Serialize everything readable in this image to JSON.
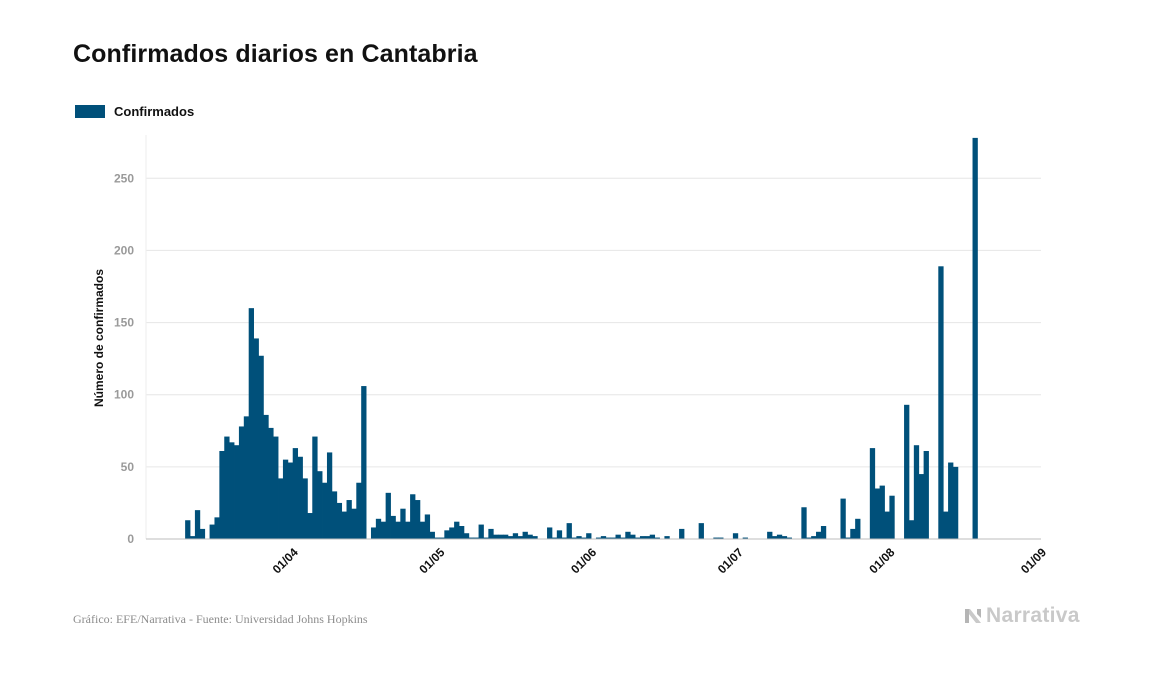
{
  "chart_data": {
    "type": "bar",
    "title": "Confirmados diarios en Cantabria",
    "ylabel": "Número de confirmados",
    "legend": "top-left",
    "grid": true,
    "ylim": [
      0,
      280
    ],
    "yticks": [
      0,
      50,
      100,
      150,
      200,
      250
    ],
    "xlim": [
      "2020-03-02",
      "2020-09-01"
    ],
    "xticks": [
      {
        "date": "2020-04-01",
        "label": "01/04"
      },
      {
        "date": "2020-05-01",
        "label": "01/05"
      },
      {
        "date": "2020-06-01",
        "label": "01/06"
      },
      {
        "date": "2020-07-01",
        "label": "01/07"
      },
      {
        "date": "2020-08-01",
        "label": "01/08"
      },
      {
        "date": "2020-09-01",
        "label": "01/09"
      }
    ],
    "series": [
      {
        "name": "Confirmados",
        "color": "#00507a",
        "points": [
          [
            "2020-03-10",
            13
          ],
          [
            "2020-03-11",
            2
          ],
          [
            "2020-03-12",
            20
          ],
          [
            "2020-03-13",
            7
          ],
          [
            "2020-03-15",
            10
          ],
          [
            "2020-03-16",
            15
          ],
          [
            "2020-03-17",
            61
          ],
          [
            "2020-03-18",
            71
          ],
          [
            "2020-03-19",
            67
          ],
          [
            "2020-03-20",
            65
          ],
          [
            "2020-03-21",
            78
          ],
          [
            "2020-03-22",
            85
          ],
          [
            "2020-03-23",
            160
          ],
          [
            "2020-03-24",
            139
          ],
          [
            "2020-03-25",
            127
          ],
          [
            "2020-03-26",
            86
          ],
          [
            "2020-03-27",
            77
          ],
          [
            "2020-03-28",
            71
          ],
          [
            "2020-03-29",
            42
          ],
          [
            "2020-03-30",
            55
          ],
          [
            "2020-03-31",
            53
          ],
          [
            "2020-04-01",
            63
          ],
          [
            "2020-04-02",
            57
          ],
          [
            "2020-04-03",
            42
          ],
          [
            "2020-04-04",
            18
          ],
          [
            "2020-04-05",
            71
          ],
          [
            "2020-04-06",
            47
          ],
          [
            "2020-04-07",
            39
          ],
          [
            "2020-04-08",
            60
          ],
          [
            "2020-04-09",
            33
          ],
          [
            "2020-04-10",
            25
          ],
          [
            "2020-04-11",
            19
          ],
          [
            "2020-04-12",
            27
          ],
          [
            "2020-04-13",
            21
          ],
          [
            "2020-04-14",
            39
          ],
          [
            "2020-04-15",
            106
          ],
          [
            "2020-04-17",
            8
          ],
          [
            "2020-04-18",
            14
          ],
          [
            "2020-04-19",
            12
          ],
          [
            "2020-04-20",
            32
          ],
          [
            "2020-04-21",
            16
          ],
          [
            "2020-04-22",
            12
          ],
          [
            "2020-04-23",
            21
          ],
          [
            "2020-04-24",
            12
          ],
          [
            "2020-04-25",
            31
          ],
          [
            "2020-04-26",
            27
          ],
          [
            "2020-04-27",
            12
          ],
          [
            "2020-04-28",
            17
          ],
          [
            "2020-04-29",
            5
          ],
          [
            "2020-04-30",
            1
          ],
          [
            "2020-05-01",
            1
          ],
          [
            "2020-05-02",
            6
          ],
          [
            "2020-05-03",
            8
          ],
          [
            "2020-05-04",
            12
          ],
          [
            "2020-05-05",
            9
          ],
          [
            "2020-05-06",
            4
          ],
          [
            "2020-05-07",
            1
          ],
          [
            "2020-05-08",
            1
          ],
          [
            "2020-05-09",
            10
          ],
          [
            "2020-05-10",
            1
          ],
          [
            "2020-05-11",
            7
          ],
          [
            "2020-05-12",
            3
          ],
          [
            "2020-05-13",
            3
          ],
          [
            "2020-05-14",
            3
          ],
          [
            "2020-05-15",
            2
          ],
          [
            "2020-05-16",
            4
          ],
          [
            "2020-05-17",
            2
          ],
          [
            "2020-05-18",
            5
          ],
          [
            "2020-05-19",
            3
          ],
          [
            "2020-05-20",
            2
          ],
          [
            "2020-05-23",
            8
          ],
          [
            "2020-05-24",
            1
          ],
          [
            "2020-05-25",
            6
          ],
          [
            "2020-05-26",
            1
          ],
          [
            "2020-05-27",
            11
          ],
          [
            "2020-05-28",
            1
          ],
          [
            "2020-05-29",
            2
          ],
          [
            "2020-05-30",
            1
          ],
          [
            "2020-05-31",
            4
          ],
          [
            "2020-06-02",
            1
          ],
          [
            "2020-06-03",
            2
          ],
          [
            "2020-06-04",
            1
          ],
          [
            "2020-06-05",
            1
          ],
          [
            "2020-06-06",
            3
          ],
          [
            "2020-06-07",
            1
          ],
          [
            "2020-06-08",
            5
          ],
          [
            "2020-06-09",
            3
          ],
          [
            "2020-06-10",
            1
          ],
          [
            "2020-06-11",
            2
          ],
          [
            "2020-06-12",
            2
          ],
          [
            "2020-06-13",
            3
          ],
          [
            "2020-06-14",
            1
          ],
          [
            "2020-06-16",
            2
          ],
          [
            "2020-06-19",
            7
          ],
          [
            "2020-06-23",
            11
          ],
          [
            "2020-06-26",
            1
          ],
          [
            "2020-06-27",
            1
          ],
          [
            "2020-06-30",
            4
          ],
          [
            "2020-07-02",
            1
          ],
          [
            "2020-07-07",
            5
          ],
          [
            "2020-07-08",
            2
          ],
          [
            "2020-07-09",
            3
          ],
          [
            "2020-07-10",
            2
          ],
          [
            "2020-07-11",
            1
          ],
          [
            "2020-07-14",
            22
          ],
          [
            "2020-07-15",
            1
          ],
          [
            "2020-07-16",
            2
          ],
          [
            "2020-07-17",
            5
          ],
          [
            "2020-07-18",
            9
          ],
          [
            "2020-07-22",
            28
          ],
          [
            "2020-07-23",
            1
          ],
          [
            "2020-07-24",
            7
          ],
          [
            "2020-07-25",
            14
          ],
          [
            "2020-07-28",
            63
          ],
          [
            "2020-07-29",
            35
          ],
          [
            "2020-07-30",
            37
          ],
          [
            "2020-07-31",
            19
          ],
          [
            "2020-08-01",
            30
          ],
          [
            "2020-08-04",
            93
          ],
          [
            "2020-08-05",
            13
          ],
          [
            "2020-08-06",
            65
          ],
          [
            "2020-08-07",
            45
          ],
          [
            "2020-08-08",
            61
          ],
          [
            "2020-08-11",
            189
          ],
          [
            "2020-08-12",
            19
          ],
          [
            "2020-08-13",
            53
          ],
          [
            "2020-08-14",
            50
          ],
          [
            "2020-08-18",
            278
          ]
        ]
      }
    ]
  },
  "footer": {
    "credit": "Gráfico: EFE/Narrativa - Fuente: Universidad Johns Hopkins",
    "brand": "Narrativa"
  }
}
